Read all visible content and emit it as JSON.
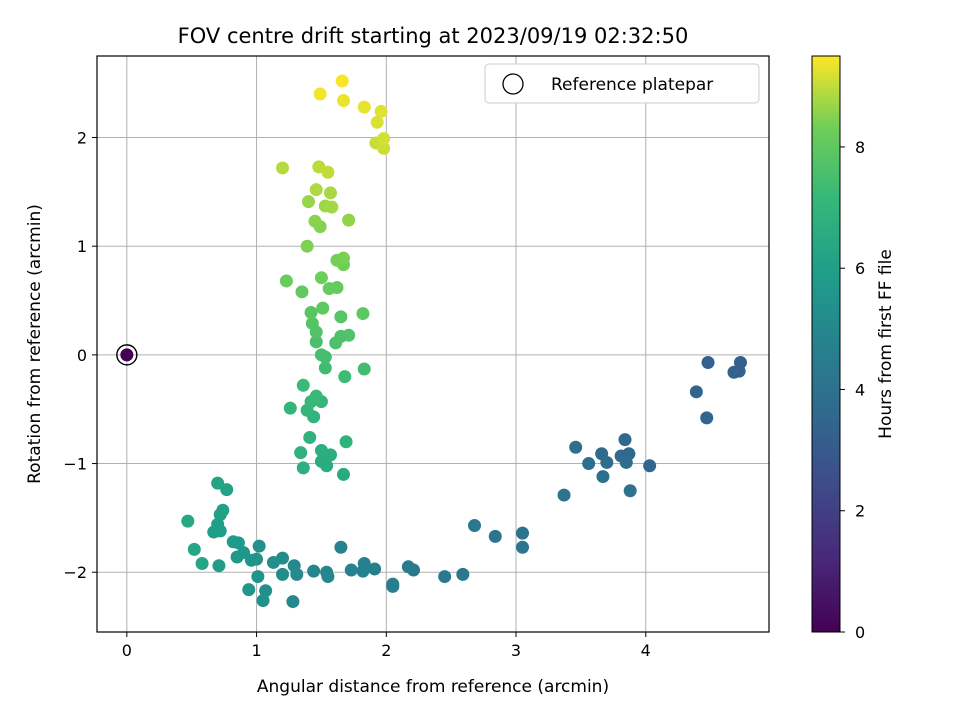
{
  "chart_data": {
    "type": "scatter",
    "title": "FOV centre drift starting at 2023/09/19 02:32:50",
    "xlabel": "Angular distance from reference (arcmin)",
    "ylabel": "Rotation from reference (arcmin)",
    "xlim": [
      -0.23,
      4.95
    ],
    "ylim": [
      -2.55,
      2.75
    ],
    "xticks": [
      0,
      1,
      2,
      3,
      4
    ],
    "yticks": [
      -2,
      -1,
      0,
      1,
      2
    ],
    "grid": true,
    "legend": {
      "position": "top-right",
      "entries": [
        "Reference platepar"
      ]
    },
    "colorbar": {
      "label": "Hours from first FF file",
      "min": 0,
      "max": 9.5,
      "ticks": [
        0,
        2,
        4,
        6,
        8
      ],
      "colormap": "viridis"
    },
    "reference_point": {
      "x": 0,
      "y": 0
    },
    "series": [
      {
        "points": [
          [
            0,
            0,
            0
          ],
          [
            4.73,
            -0.07,
            3.2
          ],
          [
            4.48,
            -0.07,
            3.25
          ],
          [
            4.72,
            -0.15,
            3.3
          ],
          [
            4.68,
            -0.16,
            3.35
          ],
          [
            4.39,
            -0.34,
            3.4
          ],
          [
            4.47,
            -0.58,
            3.45
          ],
          [
            4.03,
            -1.02,
            3.5
          ],
          [
            3.84,
            -0.78,
            3.55
          ],
          [
            3.87,
            -0.91,
            3.6
          ],
          [
            3.81,
            -0.93,
            3.65
          ],
          [
            3.66,
            -0.91,
            3.7
          ],
          [
            3.7,
            -0.99,
            3.75
          ],
          [
            3.85,
            -0.99,
            3.8
          ],
          [
            3.56,
            -1.0,
            3.85
          ],
          [
            3.46,
            -0.85,
            3.9
          ],
          [
            3.67,
            -1.12,
            3.95
          ],
          [
            3.88,
            -1.25,
            4.0
          ],
          [
            3.37,
            -1.29,
            4.05
          ],
          [
            3.05,
            -1.64,
            4.1
          ],
          [
            3.05,
            -1.77,
            4.15
          ],
          [
            2.84,
            -1.67,
            4.2
          ],
          [
            2.68,
            -1.57,
            4.25
          ],
          [
            2.59,
            -2.02,
            4.3
          ],
          [
            2.45,
            -2.04,
            4.35
          ],
          [
            2.21,
            -1.98,
            4.4
          ],
          [
            2.17,
            -1.95,
            4.45
          ],
          [
            2.05,
            -2.11,
            4.5
          ],
          [
            2.05,
            -2.13,
            4.55
          ],
          [
            1.91,
            -1.97,
            4.6
          ],
          [
            1.83,
            -1.92,
            4.65
          ],
          [
            1.82,
            -1.99,
            4.7
          ],
          [
            1.73,
            -1.98,
            4.75
          ],
          [
            1.65,
            -1.77,
            4.8
          ],
          [
            1.54,
            -2.0,
            4.85
          ],
          [
            1.55,
            -2.04,
            4.9
          ],
          [
            1.44,
            -1.99,
            4.95
          ],
          [
            1.28,
            -2.27,
            5.0
          ],
          [
            1.29,
            -1.94,
            5.05
          ],
          [
            1.31,
            -2.02,
            5.1
          ],
          [
            1.2,
            -1.87,
            5.15
          ],
          [
            1.2,
            -2.02,
            5.2
          ],
          [
            1.13,
            -1.91,
            5.25
          ],
          [
            1.07,
            -2.17,
            5.3
          ],
          [
            1.05,
            -2.26,
            5.35
          ],
          [
            1.02,
            -1.76,
            5.4
          ],
          [
            1.0,
            -1.88,
            5.45
          ],
          [
            1.01,
            -2.04,
            5.5
          ],
          [
            0.96,
            -1.89,
            5.55
          ],
          [
            0.94,
            -2.16,
            5.6
          ],
          [
            0.9,
            -1.82,
            5.65
          ],
          [
            0.85,
            -1.86,
            5.7
          ],
          [
            0.86,
            -1.73,
            5.75
          ],
          [
            0.82,
            -1.72,
            5.8
          ],
          [
            0.71,
            -1.94,
            5.85
          ],
          [
            0.72,
            -1.62,
            5.9
          ],
          [
            0.7,
            -1.56,
            5.95
          ],
          [
            0.67,
            -1.63,
            6.0
          ],
          [
            0.72,
            -1.47,
            6.05
          ],
          [
            0.74,
            -1.43,
            6.1
          ],
          [
            0.77,
            -1.24,
            6.15
          ],
          [
            0.7,
            -1.18,
            6.2
          ],
          [
            0.58,
            -1.92,
            6.25
          ],
          [
            0.52,
            -1.79,
            6.3
          ],
          [
            0.47,
            -1.53,
            6.35
          ],
          [
            1.67,
            -1.1,
            6.5
          ],
          [
            1.54,
            -1.02,
            6.55
          ],
          [
            1.5,
            -0.98,
            6.6
          ],
          [
            1.57,
            -0.92,
            6.65
          ],
          [
            1.5,
            -0.88,
            6.7
          ],
          [
            1.36,
            -1.04,
            6.75
          ],
          [
            1.34,
            -0.9,
            6.8
          ],
          [
            1.41,
            -0.76,
            6.85
          ],
          [
            1.69,
            -0.8,
            6.9
          ],
          [
            1.44,
            -0.57,
            6.95
          ],
          [
            1.39,
            -0.51,
            7.0
          ],
          [
            1.26,
            -0.49,
            7.05
          ],
          [
            1.5,
            -0.43,
            7.1
          ],
          [
            1.42,
            -0.43,
            7.15
          ],
          [
            1.46,
            -0.38,
            7.2
          ],
          [
            1.36,
            -0.28,
            7.25
          ],
          [
            1.68,
            -0.2,
            7.3
          ],
          [
            1.53,
            -0.12,
            7.35
          ],
          [
            1.83,
            -0.13,
            7.4
          ],
          [
            1.53,
            -0.02,
            7.45
          ],
          [
            1.5,
            0.0,
            7.5
          ],
          [
            1.46,
            0.12,
            7.55
          ],
          [
            1.61,
            0.11,
            7.6
          ],
          [
            1.65,
            0.17,
            7.65
          ],
          [
            1.71,
            0.18,
            7.7
          ],
          [
            1.46,
            0.21,
            7.75
          ],
          [
            1.43,
            0.29,
            7.8
          ],
          [
            1.65,
            0.35,
            7.85
          ],
          [
            1.42,
            0.39,
            7.9
          ],
          [
            1.82,
            0.38,
            7.95
          ],
          [
            1.51,
            0.43,
            8.0
          ],
          [
            1.35,
            0.58,
            8.05
          ],
          [
            1.56,
            0.61,
            8.1
          ],
          [
            1.62,
            0.62,
            8.15
          ],
          [
            1.23,
            0.68,
            8.2
          ],
          [
            1.5,
            0.71,
            8.25
          ],
          [
            1.67,
            0.83,
            8.3
          ],
          [
            1.62,
            0.87,
            8.35
          ],
          [
            1.67,
            0.89,
            8.4
          ],
          [
            1.39,
            1.0,
            8.45
          ],
          [
            1.49,
            1.18,
            8.5
          ],
          [
            1.45,
            1.23,
            8.55
          ],
          [
            1.71,
            1.24,
            8.6
          ],
          [
            1.4,
            1.41,
            8.65
          ],
          [
            1.53,
            1.37,
            8.7
          ],
          [
            1.58,
            1.36,
            8.75
          ],
          [
            1.57,
            1.49,
            8.8
          ],
          [
            1.46,
            1.52,
            8.85
          ],
          [
            1.2,
            1.72,
            8.9
          ],
          [
            1.48,
            1.73,
            8.95
          ],
          [
            1.55,
            1.68,
            9.0
          ],
          [
            1.92,
            1.95,
            9.05
          ],
          [
            1.98,
            1.9,
            9.1
          ],
          [
            1.98,
            1.99,
            9.15
          ],
          [
            1.93,
            2.14,
            9.2
          ],
          [
            1.96,
            2.24,
            9.25
          ],
          [
            1.83,
            2.28,
            9.3
          ],
          [
            1.67,
            2.34,
            9.35
          ],
          [
            1.49,
            2.4,
            9.4
          ],
          [
            1.66,
            2.52,
            9.45
          ]
        ]
      }
    ]
  }
}
